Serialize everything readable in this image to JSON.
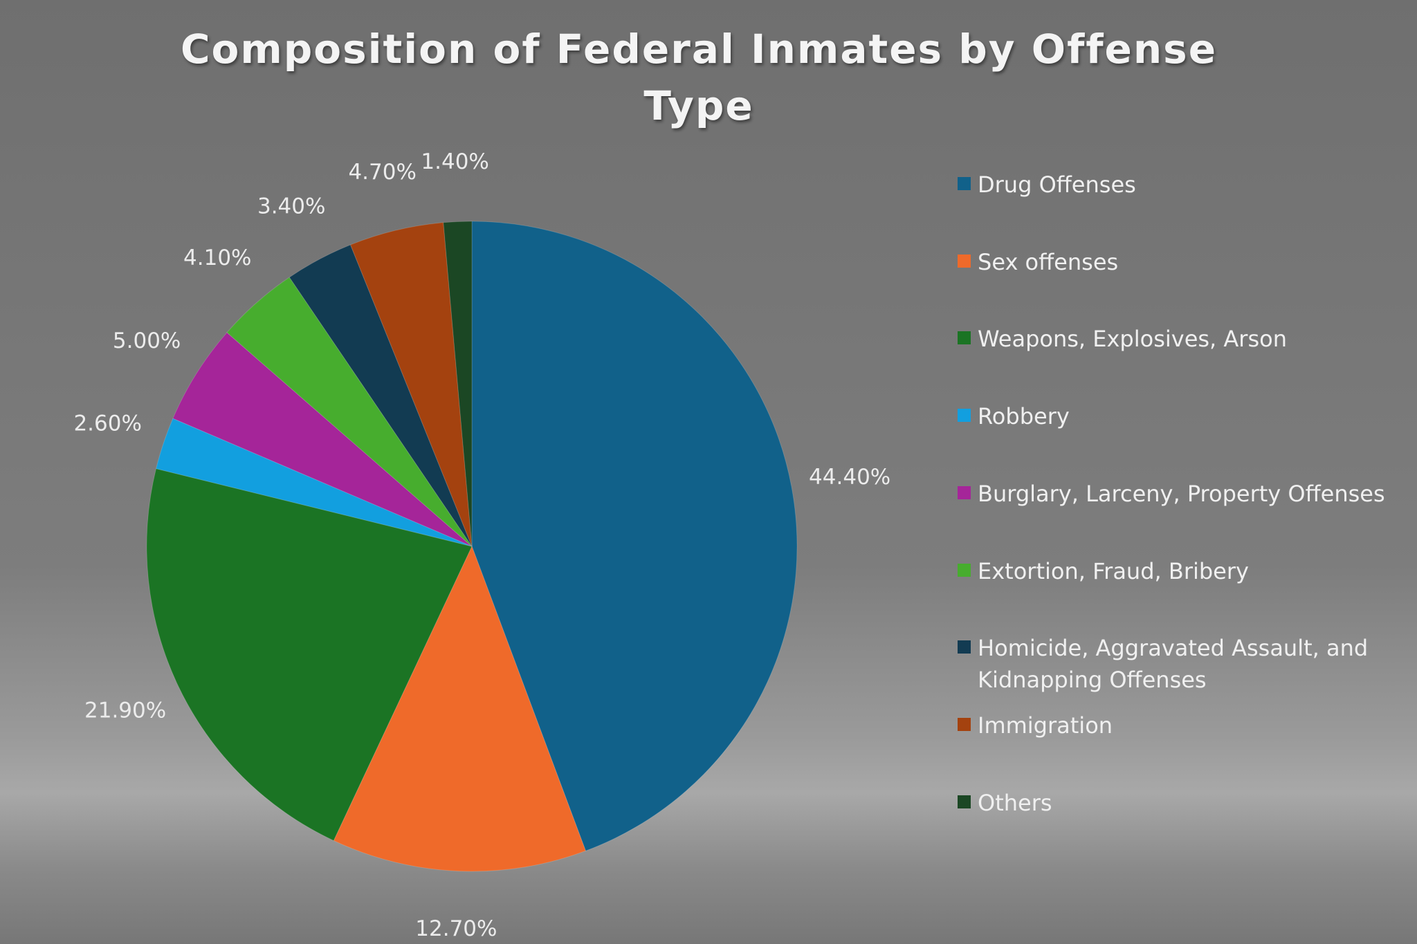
{
  "chart_data": {
    "type": "pie",
    "title": "Composition of Federal Inmates by Offense Type",
    "categories": [
      "Drug Offenses",
      "Sex offenses",
      "Weapons, Explosives, Arson",
      "Robbery",
      "Burglary, Larceny, Property Offenses",
      "Extortion, Fraud, Bribery",
      "Homicide, Aggravated Assault, and Kidnapping Offenses",
      "Immigration",
      "Others"
    ],
    "values": [
      44.4,
      12.7,
      21.9,
      2.6,
      5.0,
      4.1,
      3.4,
      4.7,
      1.4
    ],
    "value_labels": [
      "44.40%",
      "12.70%",
      "21.90%",
      "2.60%",
      "5.00%",
      "4.10%",
      "3.40%",
      "4.70%",
      "1.40%"
    ],
    "colors": [
      "#11618a",
      "#ef6a2a",
      "#1b7424",
      "#129fdf",
      "#a52599",
      "#47ad2e",
      "#123b52",
      "#a4420f",
      "#1b4724"
    ],
    "legend": "right"
  }
}
